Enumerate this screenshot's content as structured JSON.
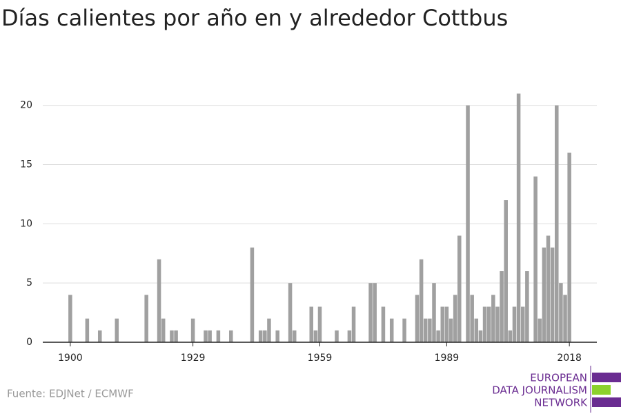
{
  "chart_data": {
    "type": "bar",
    "title": "Días calientes por año en y alrededor Cottbus",
    "source": "Fuente: EDJNet / ECMWF",
    "logo": [
      "EUROPEAN",
      "DATA JOURNALISM",
      "NETWORK"
    ],
    "color": "#a0a0a0",
    "x": [
      1900,
      1904,
      1907,
      1911,
      1918,
      1921,
      1922,
      1924,
      1925,
      1929,
      1932,
      1933,
      1935,
      1938,
      1943,
      1945,
      1946,
      1947,
      1949,
      1952,
      1953,
      1957,
      1958,
      1959,
      1963,
      1966,
      1967,
      1971,
      1972,
      1974,
      1976,
      1979,
      1982,
      1983,
      1984,
      1985,
      1986,
      1987,
      1988,
      1989,
      1990,
      1991,
      1992,
      1994,
      1995,
      1996,
      1997,
      1998,
      1999,
      2000,
      2001,
      2002,
      2003,
      2004,
      2005,
      2006,
      2007,
      2008,
      2010,
      2011,
      2012,
      2013,
      2014,
      2015,
      2016,
      2017,
      2018
    ],
    "values": [
      4,
      2,
      1,
      2,
      4,
      7,
      2,
      1,
      1,
      2,
      1,
      1,
      1,
      1,
      8,
      1,
      1,
      2,
      1,
      5,
      1,
      3,
      1,
      3,
      1,
      1,
      3,
      5,
      5,
      3,
      2,
      2,
      4,
      7,
      2,
      2,
      5,
      1,
      3,
      3,
      2,
      4,
      9,
      20,
      4,
      2,
      1,
      3,
      3,
      4,
      3,
      6,
      12,
      1,
      3,
      21,
      3,
      6,
      14,
      2,
      8,
      9,
      8,
      20,
      5,
      4,
      16
    ],
    "xlim": [
      1893.5,
      2024.5
    ],
    "xticks": [
      1900,
      1929,
      1959,
      1989,
      2018
    ],
    "ylim": [
      0,
      21.5
    ],
    "yticks": [
      0,
      5,
      10,
      15,
      20
    ],
    "grid": true
  }
}
